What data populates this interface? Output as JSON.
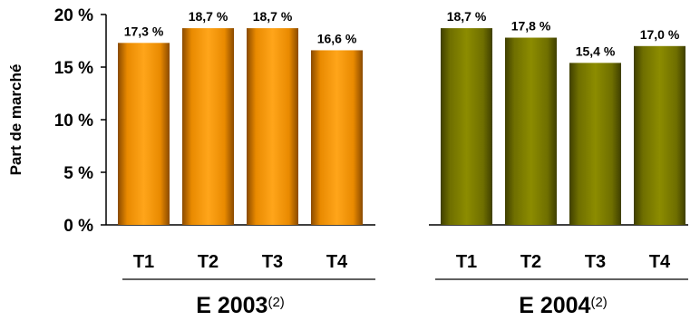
{
  "chart_data": {
    "type": "bar",
    "ylabel": "Part de marché",
    "ylim": [
      0,
      20
    ],
    "yticks": [
      "0 %",
      "5 %",
      "10 %",
      "15 %",
      "20 %"
    ],
    "ytick_values": [
      0,
      5,
      10,
      15,
      20
    ],
    "grid": false,
    "groups": [
      {
        "label": "E 2003",
        "note": "(2)",
        "color": "#FF9900",
        "categories": [
          "T1",
          "T2",
          "T3",
          "T4"
        ],
        "values": [
          17.3,
          18.7,
          18.7,
          16.6
        ],
        "value_labels": [
          "17,3 %",
          "18,7 %",
          "18,7 %",
          "16,6 %"
        ]
      },
      {
        "label": "E 2004",
        "note": "(2)",
        "color": "#808000",
        "categories": [
          "T1",
          "T2",
          "T3",
          "T4"
        ],
        "values": [
          18.7,
          17.8,
          15.4,
          17.0
        ],
        "value_labels": [
          "18,7 %",
          "17,8 %",
          "15,4 %",
          "17,0 %"
        ]
      }
    ]
  }
}
